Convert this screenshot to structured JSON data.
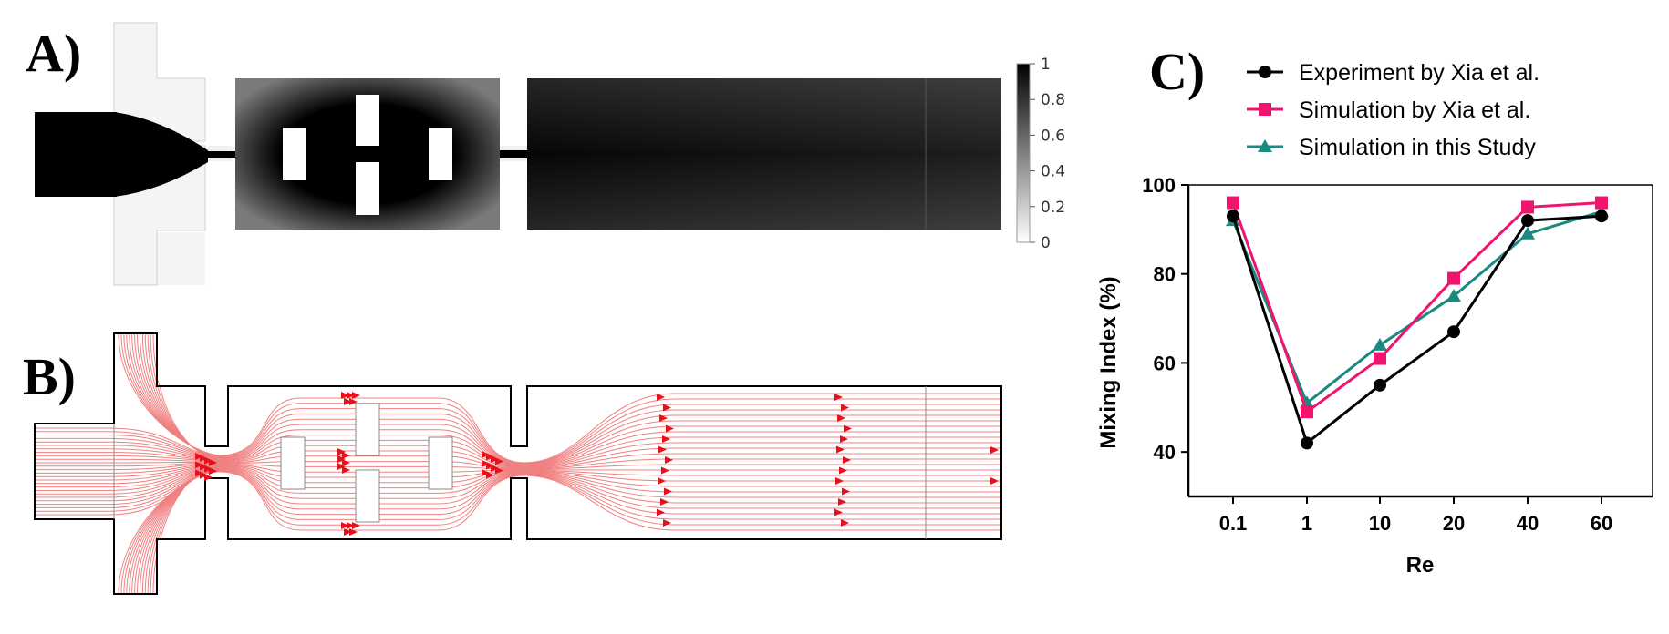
{
  "panels": {
    "a": "A)",
    "b": "B)",
    "c": "C)"
  },
  "colorbar": {
    "ticks": [
      "1",
      "0.8",
      "0.6",
      "0.4",
      "0.2",
      "0"
    ]
  },
  "colors": {
    "experiment": "#000000",
    "simulation_xia": "#f0146e",
    "simulation_study": "#1a8a80",
    "streamline": "#f08080",
    "arrow": "#e8101a"
  },
  "chart_data": {
    "type": "line",
    "xlabel": "Re",
    "ylabel": "Mixing Index (%)",
    "categories": [
      "0.1",
      "1",
      "10",
      "20",
      "40",
      "60"
    ],
    "ylim": [
      30,
      100
    ],
    "yticks": [
      40,
      60,
      80,
      100
    ],
    "grid": false,
    "legend_position": "top",
    "series": [
      {
        "name": "Experiment by Xia et al.",
        "marker": "circle",
        "color": "#000000",
        "values": [
          93,
          42,
          55,
          67,
          92,
          93
        ]
      },
      {
        "name": "Simulation by Xia et al.",
        "marker": "square",
        "color": "#f0146e",
        "values": [
          96,
          49,
          61,
          79,
          95,
          96
        ]
      },
      {
        "name": "Simulation in this Study",
        "marker": "triangle",
        "color": "#1a8a80",
        "values": [
          92,
          51,
          64,
          75,
          89,
          94
        ]
      }
    ]
  }
}
